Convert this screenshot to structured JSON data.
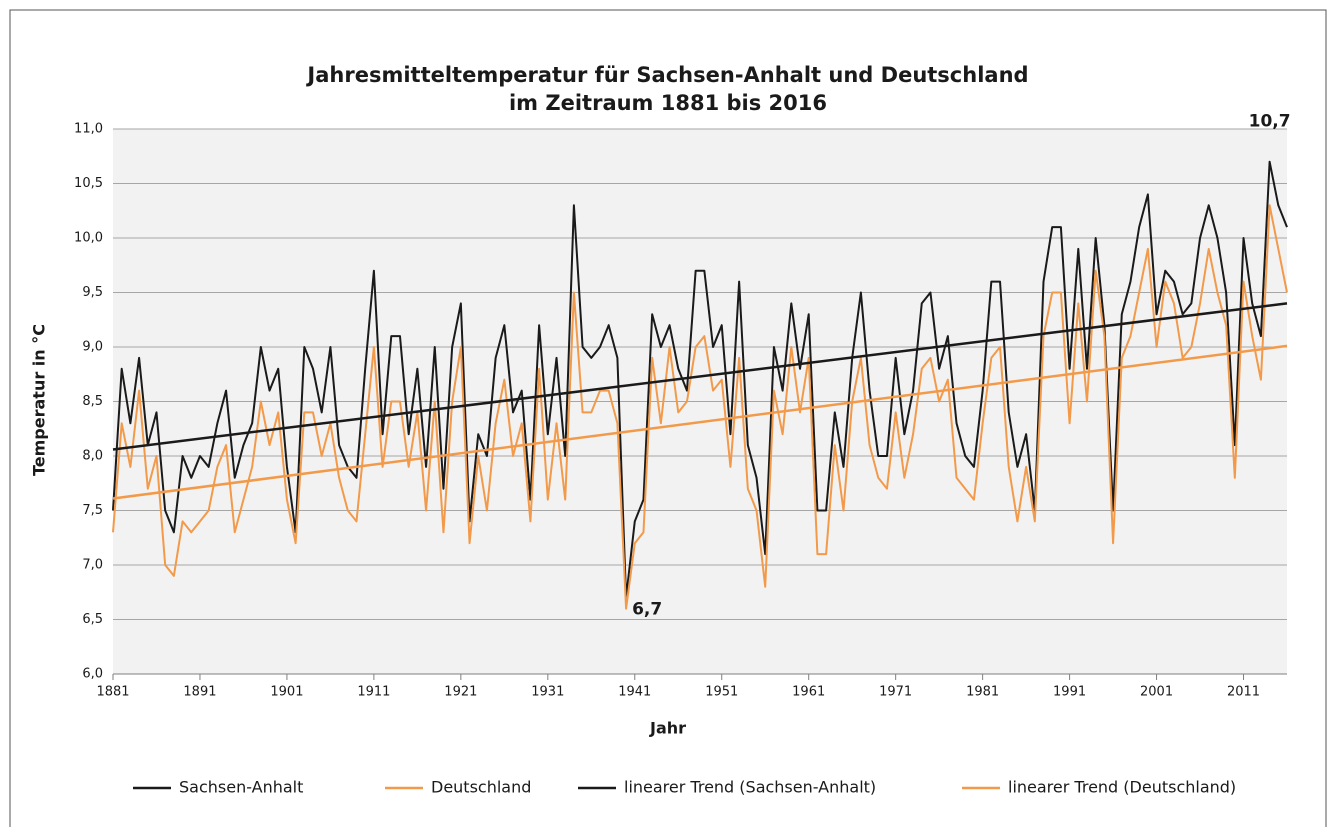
{
  "chart_data": {
    "type": "line",
    "title": [
      "Jahresmitteltemperatur für Sachsen-Anhalt und Deutschland",
      "im Zeitraum 1881 bis 2016"
    ],
    "x_label": "Jahr",
    "y_label": "Temperatur in °C",
    "x": [
      1881,
      1882,
      1883,
      1884,
      1885,
      1886,
      1887,
      1888,
      1889,
      1890,
      1891,
      1892,
      1893,
      1894,
      1895,
      1896,
      1897,
      1898,
      1899,
      1900,
      1901,
      1902,
      1903,
      1904,
      1905,
      1906,
      1907,
      1908,
      1909,
      1910,
      1911,
      1912,
      1913,
      1914,
      1915,
      1916,
      1917,
      1918,
      1919,
      1920,
      1921,
      1922,
      1923,
      1924,
      1925,
      1926,
      1927,
      1928,
      1929,
      1930,
      1931,
      1932,
      1933,
      1934,
      1935,
      1936,
      1937,
      1938,
      1939,
      1940,
      1941,
      1942,
      1943,
      1944,
      1945,
      1946,
      1947,
      1948,
      1949,
      1950,
      1951,
      1952,
      1953,
      1954,
      1955,
      1956,
      1957,
      1958,
      1959,
      1960,
      1961,
      1962,
      1963,
      1964,
      1965,
      1966,
      1967,
      1968,
      1969,
      1970,
      1971,
      1972,
      1973,
      1974,
      1975,
      1976,
      1977,
      1978,
      1979,
      1980,
      1981,
      1982,
      1983,
      1984,
      1985,
      1986,
      1987,
      1988,
      1989,
      1990,
      1991,
      1992,
      1993,
      1994,
      1995,
      1996,
      1997,
      1998,
      1999,
      2000,
      2001,
      2002,
      2003,
      2004,
      2005,
      2006,
      2007,
      2008,
      2009,
      2010,
      2011,
      2012,
      2013,
      2014,
      2015,
      2016
    ],
    "series": [
      {
        "name": "Sachsen-Anhalt",
        "color": "#1a1a1a",
        "values": [
          7.5,
          8.8,
          8.3,
          8.9,
          8.1,
          8.4,
          7.5,
          7.3,
          8.0,
          7.8,
          8.0,
          7.9,
          8.3,
          8.6,
          7.8,
          8.1,
          8.3,
          9.0,
          8.6,
          8.8,
          7.9,
          7.3,
          9.0,
          8.8,
          8.4,
          9.0,
          8.1,
          7.9,
          7.8,
          8.8,
          9.7,
          8.2,
          9.1,
          9.1,
          8.2,
          8.8,
          7.9,
          9.0,
          7.7,
          9.0,
          9.4,
          7.4,
          8.2,
          8.0,
          8.9,
          9.2,
          8.4,
          8.6,
          7.6,
          9.2,
          8.2,
          8.9,
          8.0,
          10.3,
          9.0,
          8.9,
          9.0,
          9.2,
          8.9,
          6.7,
          7.4,
          7.6,
          9.3,
          9.0,
          9.2,
          8.8,
          8.6,
          9.7,
          9.7,
          9.0,
          9.2,
          8.2,
          9.6,
          8.1,
          7.8,
          7.1,
          9.0,
          8.6,
          9.4,
          8.8,
          9.3,
          7.5,
          7.5,
          8.4,
          7.9,
          8.9,
          9.5,
          8.6,
          8.0,
          8.0,
          8.9,
          8.2,
          8.6,
          9.4,
          9.5,
          8.8,
          9.1,
          8.3,
          8.0,
          7.9,
          8.6,
          9.6,
          9.6,
          8.4,
          7.9,
          8.2,
          7.5,
          9.6,
          10.1,
          10.1,
          8.8,
          9.9,
          8.8,
          10.0,
          9.2,
          7.5,
          9.3,
          9.6,
          10.1,
          10.4,
          9.3,
          9.7,
          9.6,
          9.3,
          9.4,
          10.0,
          10.3,
          10.0,
          9.5,
          8.1,
          10.0,
          9.4,
          9.1,
          10.7,
          10.3,
          10.1
        ]
      },
      {
        "name": "Deutschland",
        "color": "#f29a4a",
        "values": [
          7.3,
          8.3,
          7.9,
          8.6,
          7.7,
          8.0,
          7.0,
          6.9,
          7.4,
          7.3,
          7.4,
          7.5,
          7.9,
          8.1,
          7.3,
          7.6,
          7.9,
          8.5,
          8.1,
          8.4,
          7.6,
          7.2,
          8.4,
          8.4,
          8.0,
          8.3,
          7.8,
          7.5,
          7.4,
          8.2,
          9.0,
          7.9,
          8.5,
          8.5,
          7.9,
          8.4,
          7.5,
          8.5,
          7.3,
          8.5,
          9.0,
          7.2,
          8.0,
          7.5,
          8.3,
          8.7,
          8.0,
          8.3,
          7.4,
          8.8,
          7.6,
          8.3,
          7.6,
          9.5,
          8.4,
          8.4,
          8.6,
          8.6,
          8.3,
          6.6,
          7.2,
          7.3,
          8.9,
          8.3,
          9.0,
          8.4,
          8.5,
          9.0,
          9.1,
          8.6,
          8.7,
          7.9,
          8.9,
          7.7,
          7.5,
          6.8,
          8.6,
          8.2,
          9.0,
          8.4,
          8.9,
          7.1,
          7.1,
          8.1,
          7.5,
          8.5,
          8.9,
          8.1,
          7.8,
          7.7,
          8.4,
          7.8,
          8.2,
          8.8,
          8.9,
          8.5,
          8.7,
          7.8,
          7.7,
          7.6,
          8.3,
          8.9,
          9.0,
          7.9,
          7.4,
          7.9,
          7.4,
          9.1,
          9.5,
          9.5,
          8.3,
          9.4,
          8.5,
          9.7,
          9.1,
          7.2,
          8.9,
          9.1,
          9.5,
          9.9,
          9.0,
          9.6,
          9.4,
          8.9,
          9.0,
          9.4,
          9.9,
          9.5,
          9.2,
          7.8,
          9.6,
          9.1,
          8.7,
          10.3,
          9.9,
          9.5
        ]
      },
      {
        "name": "linearer Trend (Sachsen-Anhalt)",
        "color": "#1a1a1a",
        "x": [
          1881,
          2016
        ],
        "values": [
          8.06,
          9.4
        ]
      },
      {
        "name": "linearer Trend (Deutschland)",
        "color": "#f29a4a",
        "x": [
          1881,
          2016
        ],
        "values": [
          7.61,
          9.01
        ]
      }
    ],
    "annotations": [
      {
        "text": "10,7",
        "x": 2014,
        "y": 10.7
      },
      {
        "text": "6,7",
        "x": 1940,
        "y": 6.7
      }
    ],
    "xlim": [
      1881,
      2016
    ],
    "xticks": [
      1881,
      1891,
      1901,
      1911,
      1921,
      1931,
      1941,
      1951,
      1961,
      1971,
      1981,
      1991,
      2001,
      2011
    ],
    "ylim": [
      6.0,
      11.0
    ],
    "yticks": [
      {
        "value": 6.0,
        "label": "6,0"
      },
      {
        "value": 6.5,
        "label": "6,5"
      },
      {
        "value": 7.0,
        "label": "7,0"
      },
      {
        "value": 7.5,
        "label": "7,5"
      },
      {
        "value": 8.0,
        "label": "8,0"
      },
      {
        "value": 8.5,
        "label": "8,5"
      },
      {
        "value": 9.0,
        "label": "9,0"
      },
      {
        "value": 9.5,
        "label": "9,5"
      },
      {
        "value": 10.0,
        "label": "10,0"
      },
      {
        "value": 10.5,
        "label": "10,5"
      },
      {
        "value": 11.0,
        "label": "11,0"
      }
    ],
    "grid": true,
    "legend": "bottom"
  }
}
